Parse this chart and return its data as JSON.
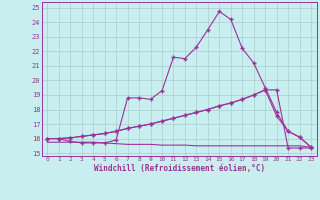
{
  "xlabel": "Windchill (Refroidissement éolien,°C)",
  "background_color": "#c8eef0",
  "line_color": "#993399",
  "grid_color": "#aacccc",
  "xmin": 0,
  "xmax": 23,
  "ymin": 15,
  "ymax": 25,
  "yticks": [
    15,
    16,
    17,
    18,
    19,
    20,
    21,
    22,
    23,
    24,
    25
  ],
  "xticks": [
    0,
    1,
    2,
    3,
    4,
    5,
    6,
    7,
    8,
    9,
    10,
    11,
    12,
    13,
    14,
    15,
    16,
    17,
    18,
    19,
    20,
    21,
    22,
    23
  ],
  "line1_x": [
    0,
    1,
    2,
    3,
    4,
    5,
    6,
    7,
    8,
    9,
    10,
    11,
    12,
    13,
    14,
    15,
    16,
    17,
    18,
    19,
    20,
    21,
    22,
    23
  ],
  "line1_y": [
    16.0,
    16.0,
    15.8,
    15.7,
    15.7,
    15.7,
    15.9,
    18.8,
    18.8,
    18.7,
    19.3,
    21.6,
    21.5,
    22.3,
    23.5,
    24.75,
    24.2,
    22.2,
    21.2,
    19.5,
    17.8,
    16.5,
    16.1,
    15.4
  ],
  "line2_x": [
    0,
    1,
    2,
    3,
    4,
    5,
    6,
    7,
    8,
    9,
    10,
    11,
    12,
    13,
    14,
    15,
    16,
    17,
    18,
    19,
    20,
    21,
    22,
    23
  ],
  "line2_y": [
    16.0,
    16.0,
    16.05,
    16.15,
    16.25,
    16.35,
    16.5,
    16.7,
    16.85,
    17.0,
    17.2,
    17.4,
    17.6,
    17.8,
    18.0,
    18.25,
    18.45,
    18.7,
    19.0,
    19.35,
    19.35,
    15.35,
    15.35,
    15.35
  ],
  "line3_x": [
    0,
    1,
    2,
    3,
    4,
    5,
    6,
    7,
    8,
    9,
    10,
    11,
    12,
    13,
    14,
    15,
    16,
    17,
    18,
    19,
    20,
    21,
    22,
    23
  ],
  "line3_y": [
    16.0,
    16.0,
    16.05,
    16.15,
    16.25,
    16.35,
    16.5,
    16.7,
    16.85,
    17.0,
    17.2,
    17.4,
    17.6,
    17.8,
    18.0,
    18.25,
    18.45,
    18.7,
    19.0,
    19.35,
    17.55,
    16.5,
    16.1,
    15.4
  ],
  "line4_x": [
    0,
    1,
    2,
    3,
    4,
    5,
    6,
    7,
    8,
    9,
    10,
    11,
    12,
    13,
    14,
    15,
    16,
    17,
    18,
    19,
    20,
    21,
    22,
    23
  ],
  "line4_y": [
    15.75,
    15.75,
    15.75,
    15.75,
    15.75,
    15.7,
    15.65,
    15.6,
    15.6,
    15.6,
    15.55,
    15.55,
    15.55,
    15.5,
    15.5,
    15.5,
    15.5,
    15.5,
    15.5,
    15.5,
    15.5,
    15.5,
    15.5,
    15.4
  ]
}
